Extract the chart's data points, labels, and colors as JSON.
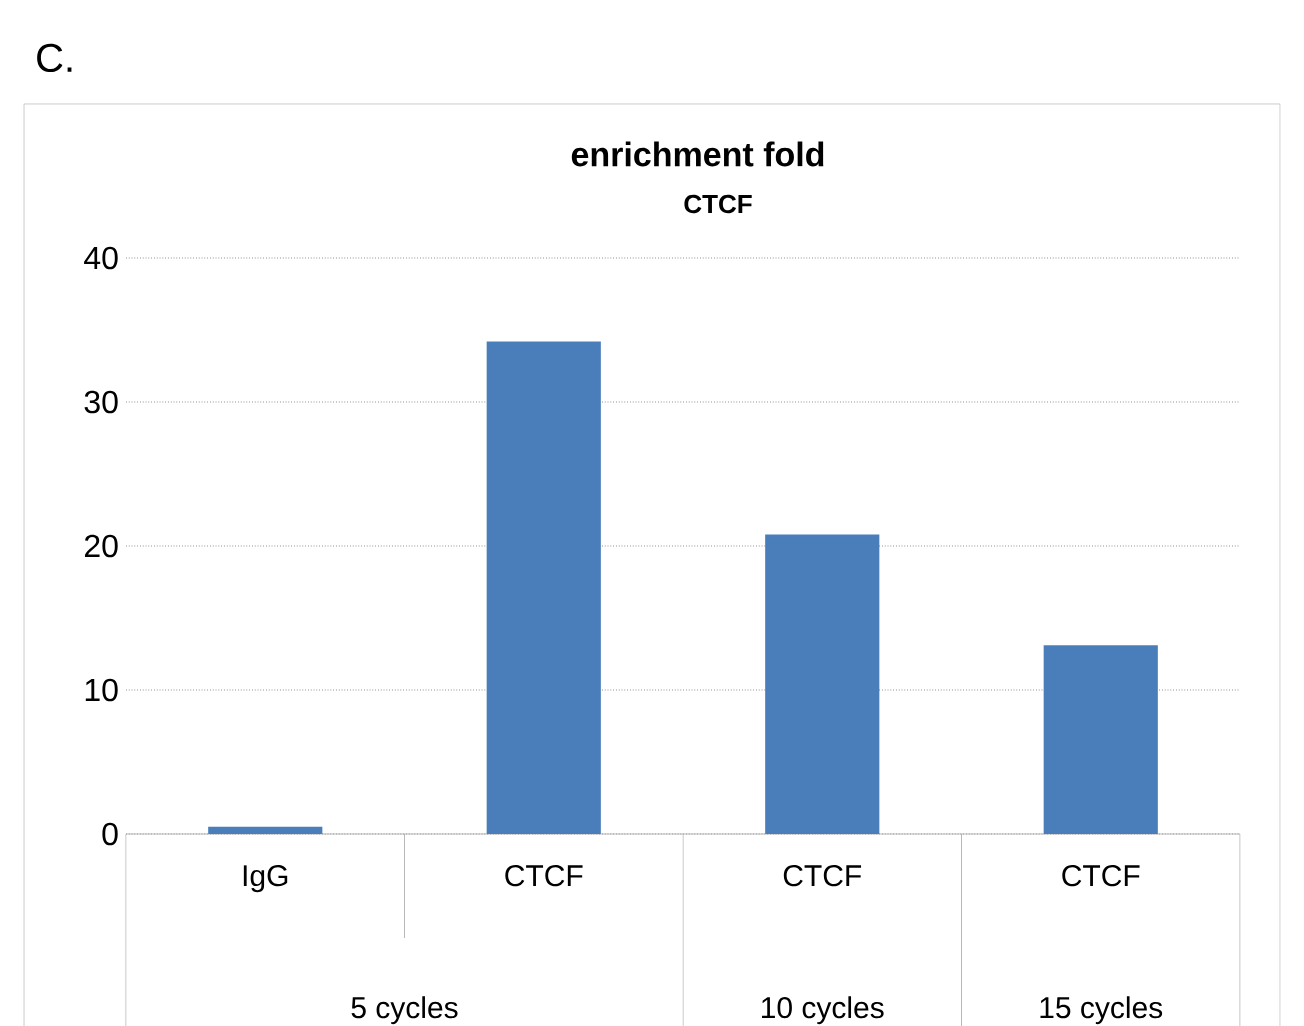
{
  "chart_data": {
    "type": "bar",
    "title": "enrichment fold",
    "subtitle": "CTCF",
    "categories": [
      "IgG",
      "CTCF",
      "CTCF",
      "CTCF"
    ],
    "values": [
      0.5,
      34.2,
      20.8,
      13.1
    ],
    "color": "#4a7ebb",
    "ylim": [
      0,
      40
    ],
    "yticks": [
      0,
      10,
      20,
      30,
      40
    ],
    "grid": "y",
    "annotations": [
      "C.",
      "5 cycles",
      "10 cycles",
      "15 cycles"
    ]
  }
}
